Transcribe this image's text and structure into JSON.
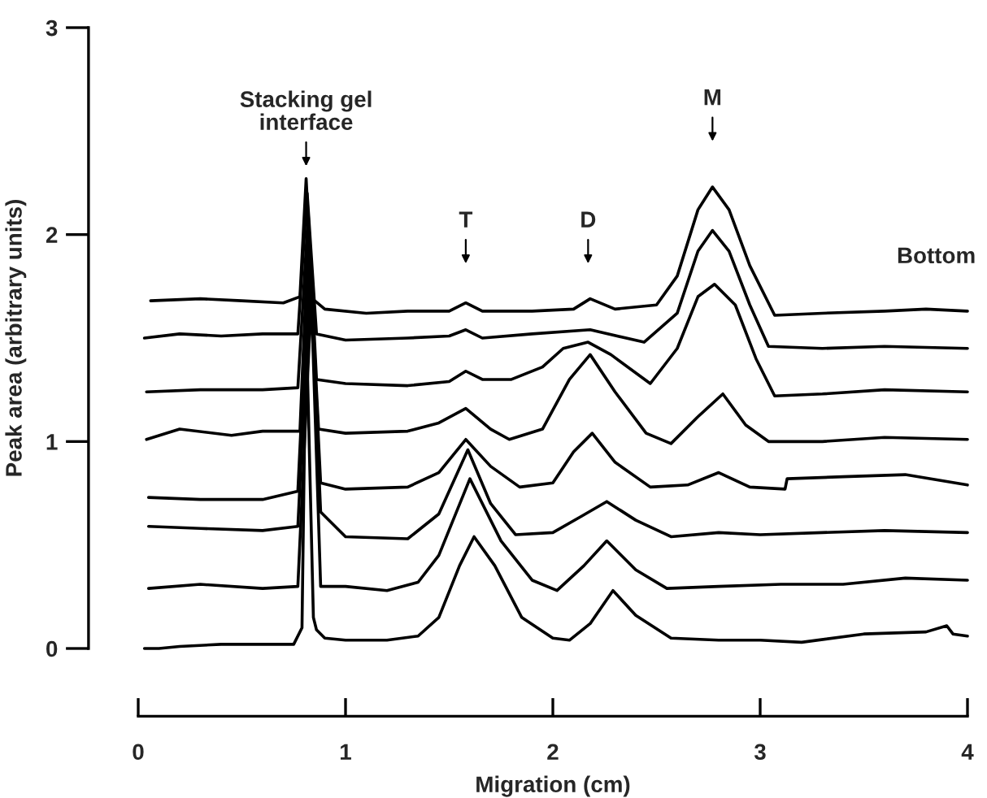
{
  "chart_data": {
    "type": "line",
    "xlabel": "Migration (cm)",
    "ylabel": "Peak area (arbitrary units)",
    "xlim": [
      0,
      4
    ],
    "xticks": [
      0,
      1,
      2,
      3,
      4
    ],
    "ylim": [
      0,
      3
    ],
    "yticks": [
      0,
      1,
      2,
      3
    ],
    "grid": false,
    "marker": "none",
    "line_style": "solid",
    "annotations": [
      "Stacking gel\ninterface",
      "T",
      "D",
      "M",
      "Bottom"
    ],
    "series": [
      {
        "color": "#000000",
        "x": [
          0.06,
          0.3,
          0.5,
          0.7,
          0.78,
          0.81,
          0.84,
          0.9,
          1.1,
          1.3,
          1.5,
          1.58,
          1.66,
          1.9,
          2.1,
          2.18,
          2.3,
          2.5,
          2.6,
          2.7,
          2.77,
          2.85,
          2.95,
          3.07,
          3.3,
          3.6,
          3.8,
          4.0
        ],
        "values": [
          1.68,
          1.69,
          1.68,
          1.67,
          1.7,
          2.27,
          1.69,
          1.64,
          1.62,
          1.63,
          1.63,
          1.67,
          1.63,
          1.63,
          1.64,
          1.69,
          1.64,
          1.66,
          1.8,
          2.12,
          2.23,
          2.12,
          1.85,
          1.61,
          1.62,
          1.63,
          1.64,
          1.63
        ]
      },
      {
        "color": "#000000",
        "x": [
          0.03,
          0.2,
          0.4,
          0.6,
          0.77,
          0.815,
          0.86,
          1.0,
          1.3,
          1.5,
          1.58,
          1.66,
          1.9,
          2.18,
          2.44,
          2.6,
          2.7,
          2.77,
          2.85,
          2.95,
          3.04,
          3.3,
          3.6,
          4.0
        ],
        "values": [
          1.5,
          1.52,
          1.51,
          1.52,
          1.52,
          2.2,
          1.52,
          1.49,
          1.5,
          1.51,
          1.54,
          1.5,
          1.52,
          1.54,
          1.48,
          1.62,
          1.92,
          2.02,
          1.92,
          1.66,
          1.46,
          1.45,
          1.46,
          1.45
        ]
      },
      {
        "color": "#000000",
        "x": [
          0.04,
          0.3,
          0.6,
          0.77,
          0.82,
          0.86,
          1.0,
          1.3,
          1.5,
          1.58,
          1.66,
          1.8,
          1.95,
          2.05,
          2.17,
          2.28,
          2.47,
          2.6,
          2.7,
          2.78,
          2.88,
          2.98,
          3.07,
          3.3,
          3.6,
          4.0
        ],
        "values": [
          1.24,
          1.25,
          1.25,
          1.26,
          2.1,
          1.3,
          1.28,
          1.27,
          1.29,
          1.34,
          1.3,
          1.3,
          1.36,
          1.45,
          1.48,
          1.42,
          1.28,
          1.45,
          1.7,
          1.76,
          1.66,
          1.4,
          1.22,
          1.23,
          1.25,
          1.24
        ]
      },
      {
        "color": "#000000",
        "x": [
          0.04,
          0.2,
          0.45,
          0.6,
          0.78,
          0.82,
          0.87,
          1.0,
          1.3,
          1.45,
          1.58,
          1.7,
          1.79,
          1.95,
          2.08,
          2.18,
          2.3,
          2.45,
          2.57,
          2.7,
          2.82,
          2.93,
          3.04,
          3.3,
          3.6,
          4.0
        ],
        "values": [
          1.01,
          1.06,
          1.03,
          1.05,
          1.05,
          2.0,
          1.06,
          1.04,
          1.05,
          1.09,
          1.16,
          1.06,
          1.01,
          1.06,
          1.3,
          1.42,
          1.24,
          1.04,
          0.99,
          1.12,
          1.23,
          1.08,
          1.0,
          1.0,
          1.02,
          1.01
        ]
      },
      {
        "color": "#000000",
        "x": [
          0.05,
          0.3,
          0.6,
          0.77,
          0.825,
          0.88,
          1.0,
          1.3,
          1.45,
          1.58,
          1.7,
          1.84,
          2.0,
          2.1,
          2.19,
          2.3,
          2.47,
          2.65,
          2.8,
          2.95,
          3.12,
          3.13,
          3.4,
          3.7,
          4.0
        ],
        "values": [
          0.73,
          0.72,
          0.72,
          0.76,
          1.9,
          0.8,
          0.77,
          0.78,
          0.85,
          1.01,
          0.88,
          0.78,
          0.8,
          0.95,
          1.04,
          0.9,
          0.78,
          0.79,
          0.85,
          0.78,
          0.77,
          0.82,
          0.83,
          0.84,
          0.79
        ]
      },
      {
        "color": "#000000",
        "x": [
          0.05,
          0.3,
          0.6,
          0.77,
          0.83,
          0.88,
          1.0,
          1.3,
          1.45,
          1.59,
          1.7,
          1.82,
          2.0,
          2.14,
          2.26,
          2.4,
          2.57,
          2.8,
          3.0,
          3.3,
          3.6,
          4.0
        ],
        "values": [
          0.59,
          0.58,
          0.57,
          0.59,
          1.8,
          0.66,
          0.54,
          0.53,
          0.65,
          0.96,
          0.7,
          0.55,
          0.56,
          0.64,
          0.71,
          0.62,
          0.54,
          0.56,
          0.55,
          0.56,
          0.57,
          0.56
        ]
      },
      {
        "color": "#000000",
        "x": [
          0.05,
          0.3,
          0.6,
          0.77,
          0.835,
          0.88,
          1.0,
          1.2,
          1.35,
          1.45,
          1.6,
          1.75,
          1.9,
          2.02,
          2.15,
          2.26,
          2.4,
          2.55,
          2.8,
          3.1,
          3.4,
          3.7,
          4.0
        ],
        "values": [
          0.29,
          0.31,
          0.29,
          0.3,
          1.7,
          0.3,
          0.3,
          0.28,
          0.32,
          0.45,
          0.82,
          0.52,
          0.33,
          0.28,
          0.4,
          0.52,
          0.38,
          0.29,
          0.3,
          0.31,
          0.31,
          0.34,
          0.33
        ]
      },
      {
        "color": "#000000",
        "x": [
          0.03,
          0.1,
          0.2,
          0.4,
          0.6,
          0.75,
          0.79,
          0.81,
          0.845,
          0.86,
          0.9,
          1.0,
          1.2,
          1.35,
          1.45,
          1.55,
          1.62,
          1.72,
          1.85,
          2.0,
          2.08,
          2.18,
          2.29,
          2.4,
          2.57,
          2.8,
          3.0,
          3.2,
          3.5,
          3.8,
          3.9,
          3.93,
          4.0
        ],
        "values": [
          0.0,
          0.0,
          0.01,
          0.02,
          0.02,
          0.02,
          0.1,
          1.6,
          0.15,
          0.09,
          0.05,
          0.04,
          0.04,
          0.06,
          0.15,
          0.4,
          0.54,
          0.4,
          0.15,
          0.05,
          0.04,
          0.12,
          0.28,
          0.16,
          0.05,
          0.04,
          0.04,
          0.03,
          0.07,
          0.08,
          0.11,
          0.07,
          0.06
        ]
      }
    ]
  }
}
